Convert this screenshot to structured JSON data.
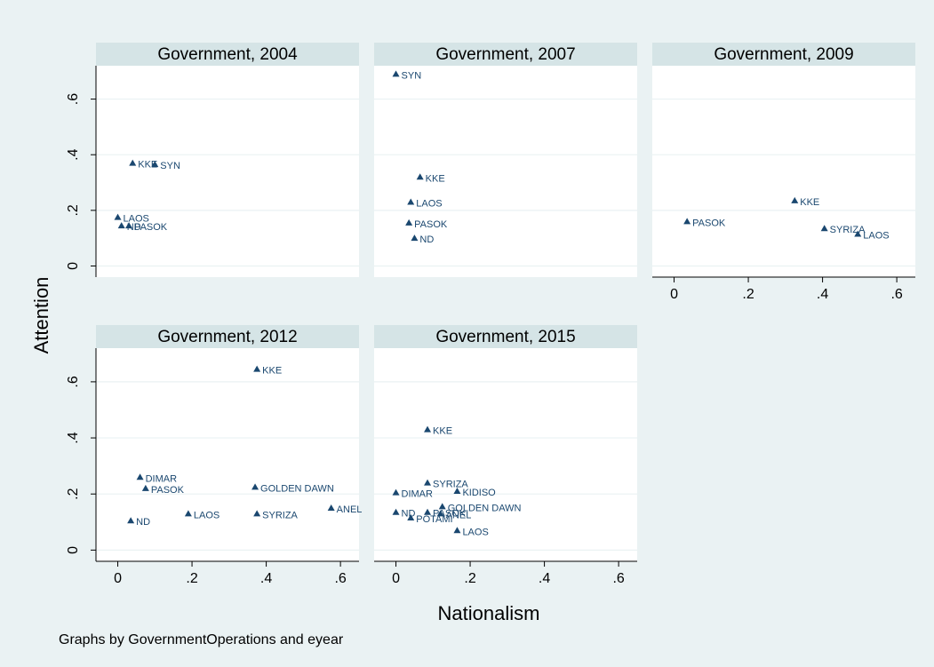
{
  "figure": {
    "ylabel": "Attention",
    "xlabel": "Nationalism",
    "note": "Graphs by GovernmentOperations and eyear",
    "x_ticks": [
      0,
      0.2,
      0.4,
      0.6
    ],
    "x_tick_labels": [
      "0",
      ".2",
      ".4",
      ".6"
    ],
    "y_ticks": [
      0,
      0.2,
      0.4,
      0.6
    ],
    "y_tick_labels": [
      "0",
      ".2",
      ".4",
      ".6"
    ],
    "xlim": [
      -0.03,
      0.65
    ],
    "ylim": [
      -0.04,
      0.72
    ],
    "colors": {
      "background": "#eaf2f3",
      "plot_area": "#ffffff",
      "panel_header": "#d5e4e6",
      "marker": "#1a476f",
      "label": "#1a476f",
      "grid": "#eaf2f3"
    }
  },
  "chart_data": [
    {
      "type": "scatter",
      "title": "Government, 2004",
      "points": [
        {
          "label": "KKE",
          "x": 0.04,
          "y": 0.37
        },
        {
          "label": "SYN",
          "x": 0.1,
          "y": 0.365
        },
        {
          "label": "LAOS",
          "x": 0.0,
          "y": 0.175
        },
        {
          "label": "ND",
          "x": 0.01,
          "y": 0.145
        },
        {
          "label": "PASOK",
          "x": 0.03,
          "y": 0.145
        }
      ]
    },
    {
      "type": "scatter",
      "title": "Government, 2007",
      "points": [
        {
          "label": "SYN",
          "x": 0.0,
          "y": 0.69
        },
        {
          "label": "KKE",
          "x": 0.065,
          "y": 0.32
        },
        {
          "label": "LAOS",
          "x": 0.04,
          "y": 0.23
        },
        {
          "label": "PASOK",
          "x": 0.035,
          "y": 0.155
        },
        {
          "label": "ND",
          "x": 0.05,
          "y": 0.1
        }
      ]
    },
    {
      "type": "scatter",
      "title": "Government, 2009",
      "points": [
        {
          "label": "KKE",
          "x": 0.325,
          "y": 0.235
        },
        {
          "label": "PASOK",
          "x": 0.035,
          "y": 0.16
        },
        {
          "label": "SYRIZA",
          "x": 0.405,
          "y": 0.135
        },
        {
          "label": "LAOS",
          "x": 0.495,
          "y": 0.115
        }
      ]
    },
    {
      "type": "scatter",
      "title": "Government, 2012",
      "points": [
        {
          "label": "KKE",
          "x": 0.375,
          "y": 0.645
        },
        {
          "label": "DIMAR",
          "x": 0.06,
          "y": 0.26
        },
        {
          "label": "PASOK",
          "x": 0.075,
          "y": 0.22
        },
        {
          "label": "GOLDEN DAWN",
          "x": 0.37,
          "y": 0.225
        },
        {
          "label": "ANEL",
          "x": 0.575,
          "y": 0.15
        },
        {
          "label": "LAOS",
          "x": 0.19,
          "y": 0.13
        },
        {
          "label": "SYRIZA",
          "x": 0.375,
          "y": 0.13
        },
        {
          "label": "ND",
          "x": 0.035,
          "y": 0.105
        }
      ]
    },
    {
      "type": "scatter",
      "title": "Government, 2015",
      "points": [
        {
          "label": "KKE",
          "x": 0.085,
          "y": 0.43
        },
        {
          "label": "SYRIZA",
          "x": 0.085,
          "y": 0.24
        },
        {
          "label": "DIMAR",
          "x": 0.0,
          "y": 0.205
        },
        {
          "label": "KIDISO",
          "x": 0.165,
          "y": 0.21
        },
        {
          "label": "GOLDEN DAWN",
          "x": 0.125,
          "y": 0.155
        },
        {
          "label": "ND",
          "x": 0.0,
          "y": 0.135
        },
        {
          "label": "PASOK",
          "x": 0.085,
          "y": 0.135
        },
        {
          "label": "ANEL",
          "x": 0.12,
          "y": 0.13
        },
        {
          "label": "POTAMI",
          "x": 0.04,
          "y": 0.115
        },
        {
          "label": "LAOS",
          "x": 0.165,
          "y": 0.07
        }
      ]
    }
  ]
}
